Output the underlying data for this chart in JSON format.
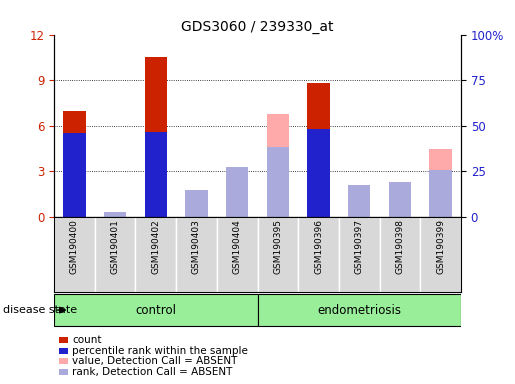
{
  "title": "GDS3060 / 239330_at",
  "samples": [
    "GSM190400",
    "GSM190401",
    "GSM190402",
    "GSM190403",
    "GSM190404",
    "GSM190395",
    "GSM190396",
    "GSM190397",
    "GSM190398",
    "GSM190399"
  ],
  "count": [
    7.0,
    0,
    10.5,
    0,
    0,
    0,
    8.8,
    0,
    0,
    0
  ],
  "percentile_rank": [
    5.5,
    0,
    5.6,
    0,
    0,
    0,
    5.8,
    0,
    0,
    0
  ],
  "value_absent": [
    0,
    0,
    0,
    0.65,
    2.7,
    6.8,
    0,
    1.2,
    1.5,
    4.5
  ],
  "rank_absent": [
    0,
    0.3,
    0,
    1.8,
    3.3,
    4.6,
    0,
    2.1,
    2.3,
    3.1
  ],
  "ylim_left": [
    0,
    12
  ],
  "ylim_right": [
    0,
    100
  ],
  "yticks_left": [
    0,
    3,
    6,
    9,
    12
  ],
  "yticks_right": [
    0,
    25,
    50,
    75,
    100
  ],
  "yticklabels_right": [
    "0",
    "25",
    "50",
    "75",
    "100%"
  ],
  "color_count": "#cc2200",
  "color_rank": "#2222cc",
  "color_value_absent": "#ffaaaa",
  "color_rank_absent": "#aaaadd",
  "group_color": "#99ee99",
  "bar_width": 0.55,
  "small_bar_width": 0.15,
  "disease_label": "disease state",
  "legend_labels": [
    "count",
    "percentile rank within the sample",
    "value, Detection Call = ABSENT",
    "rank, Detection Call = ABSENT"
  ]
}
